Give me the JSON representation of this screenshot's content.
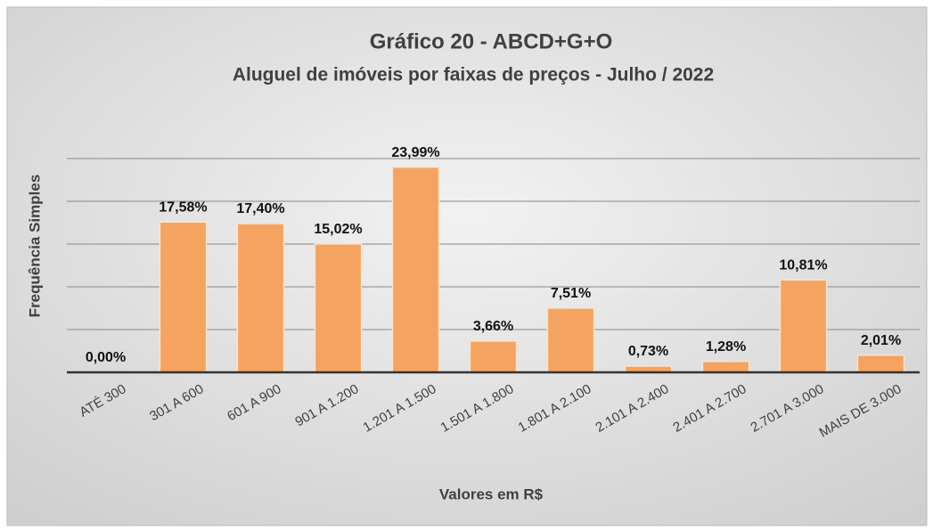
{
  "chart_data": {
    "type": "bar",
    "title": "Gráfico 20 - ABCD+G+O",
    "subtitle": "Aluguel de imóveis por faixas de preços - Julho / 2022",
    "x_label": "Valores em R$",
    "y_label": "Frequência Simples",
    "categories": [
      "ATÉ 300",
      "301 A 600",
      "601 A 900",
      "901 A 1.200",
      "1.201 A 1.500",
      "1.501 A 1.800",
      "1.801 A 2.100",
      "2.101 A 2.400",
      "2.401 A 2.700",
      "2.701 A 3.000",
      "MAIS DE 3.000"
    ],
    "values": [
      0,
      17.58,
      17.4,
      15.02,
      23.99,
      3.66,
      7.51,
      0.73,
      1.28,
      10.81,
      2.01
    ],
    "value_labels": [
      "0,00%",
      "17,58%",
      "17,40%",
      "15,02%",
      "23,99%",
      "3,66%",
      "7,51%",
      "0,73%",
      "1,28%",
      "10,81%",
      "2,01%"
    ],
    "color": "#f4a460",
    "ylim": [
      0,
      25
    ],
    "yticks": [
      0,
      5,
      10,
      15,
      20,
      25
    ],
    "grid": true
  }
}
